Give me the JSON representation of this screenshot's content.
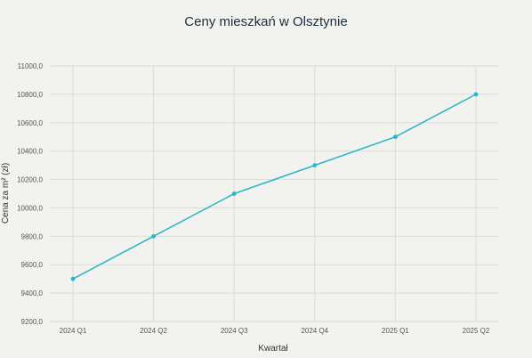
{
  "chart_data": {
    "type": "line",
    "title": "Ceny mieszkań w Olsztynie",
    "xlabel": "Kwartał",
    "ylabel": "Cena za m² (zł)",
    "categories": [
      "2024 Q1",
      "2024 Q2",
      "2024 Q3",
      "2024 Q4",
      "2025 Q1",
      "2025 Q2"
    ],
    "series": [
      {
        "values": [
          9500,
          9800,
          10100,
          10300,
          10500,
          10800
        ]
      }
    ],
    "ylim": [
      9200,
      11000
    ],
    "yticks": [
      9200,
      9400,
      9600,
      9800,
      10000,
      10200,
      10400,
      10600,
      10800,
      11000
    ],
    "ytick_labels": [
      "9200,0",
      "9400,0",
      "9600,0",
      "9800,0",
      "10000,0",
      "10200,0",
      "10400,0",
      "10600,0",
      "10800,0",
      "11000,0"
    ],
    "grid": true,
    "colors": {
      "line": "#2bb5c8",
      "background": "#f2f2ee"
    }
  }
}
